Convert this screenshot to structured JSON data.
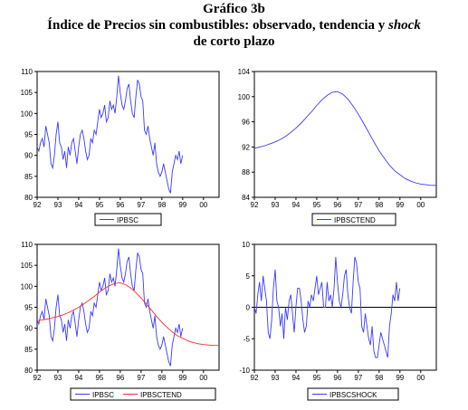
{
  "title_line1": "Gráfico 3b",
  "title_line2_prefix": "Índice de Precios sin combustibles: observado, tendencia y ",
  "title_line2_italic": "shock",
  "title_line3": "de corto plazo",
  "colors": {
    "observed": "#3a3aff",
    "trend": "#3a3aff",
    "trend_overlay": "#ff2a2a",
    "shock": "#3a3aff",
    "frame": "#000000"
  },
  "chart_data": [
    {
      "type": "line",
      "xlabel": "",
      "ylabel": "",
      "xticks": [
        "92",
        "93",
        "94",
        "95",
        "96",
        "97",
        "98",
        "99",
        "00"
      ],
      "xlim": [
        1992.0,
        2000.75
      ],
      "ylim": [
        80,
        110
      ],
      "yticks": [
        80,
        85,
        90,
        95,
        100,
        105,
        110
      ],
      "zero_line": false,
      "legend_position": "bottom",
      "series": [
        {
          "name": "IPBSC",
          "color": "#3a3aff",
          "x_start": 1992.0,
          "step": 0.0833,
          "values": [
            92,
            91,
            93,
            94,
            92,
            97,
            95,
            93,
            88,
            87,
            90,
            95,
            98,
            93,
            92,
            89,
            91,
            87,
            92,
            90,
            93,
            94,
            91,
            88,
            92,
            95,
            96,
            94,
            91,
            89,
            90,
            94,
            93,
            96,
            95,
            98,
            101,
            99,
            100,
            102,
            98,
            99,
            103,
            101,
            102,
            100,
            104,
            109,
            105,
            102,
            101,
            103,
            106,
            107,
            103,
            100,
            99,
            104,
            108,
            107,
            104,
            103,
            96,
            95,
            97,
            94,
            92,
            90,
            93,
            88,
            86,
            85,
            86,
            88,
            86,
            84,
            82,
            81,
            86,
            88,
            90,
            89,
            91,
            88,
            90
          ]
        }
      ]
    },
    {
      "type": "line",
      "xlabel": "",
      "ylabel": "",
      "xticks": [
        "92",
        "93",
        "94",
        "95",
        "96",
        "97",
        "98",
        "99",
        "00"
      ],
      "xlim": [
        1992.0,
        2000.75
      ],
      "ylim": [
        84,
        104
      ],
      "yticks": [
        84,
        88,
        92,
        96,
        100,
        104
      ],
      "zero_line": false,
      "legend_position": "bottom",
      "series": [
        {
          "name": "IPBSCTEND",
          "color": "#3a3aff",
          "x_start": 1992.0,
          "step": 0.25,
          "values": [
            91.8,
            92.0,
            92.2,
            92.5,
            92.8,
            93.2,
            93.7,
            94.3,
            95.0,
            95.8,
            96.7,
            97.6,
            98.6,
            99.5,
            100.2,
            100.7,
            100.8,
            100.4,
            99.6,
            98.5,
            97.2,
            95.8,
            94.3,
            92.8,
            91.4,
            90.2,
            89.1,
            88.2,
            87.6,
            87.0,
            86.6,
            86.3,
            86.1,
            86.0,
            85.9,
            85.9
          ]
        }
      ]
    },
    {
      "type": "line",
      "xlabel": "",
      "ylabel": "",
      "xticks": [
        "92",
        "93",
        "94",
        "95",
        "96",
        "97",
        "98",
        "99",
        "00"
      ],
      "xlim": [
        1992.0,
        2000.75
      ],
      "ylim": [
        80,
        110
      ],
      "yticks": [
        80,
        85,
        90,
        95,
        100,
        105,
        110
      ],
      "zero_line": false,
      "legend_position": "bottom",
      "series": [
        {
          "name": "IPBSC",
          "color": "#3a3aff",
          "x_start": 1992.0,
          "step": 0.0833,
          "values": [
            92,
            91,
            93,
            94,
            92,
            97,
            95,
            93,
            88,
            87,
            90,
            95,
            98,
            93,
            92,
            89,
            91,
            87,
            92,
            90,
            93,
            94,
            91,
            88,
            92,
            95,
            96,
            94,
            91,
            89,
            90,
            94,
            93,
            96,
            95,
            98,
            101,
            99,
            100,
            102,
            98,
            99,
            103,
            101,
            102,
            100,
            104,
            109,
            105,
            102,
            101,
            103,
            106,
            107,
            103,
            100,
            99,
            104,
            108,
            107,
            104,
            103,
            96,
            95,
            97,
            94,
            92,
            90,
            93,
            88,
            86,
            85,
            86,
            88,
            86,
            84,
            82,
            81,
            86,
            88,
            90,
            89,
            91,
            88,
            90
          ]
        },
        {
          "name": "IPBSCTEND",
          "color": "#ff2a2a",
          "x_start": 1992.0,
          "step": 0.25,
          "values": [
            91.8,
            92.0,
            92.2,
            92.5,
            92.8,
            93.2,
            93.7,
            94.3,
            95.0,
            95.8,
            96.7,
            97.6,
            98.6,
            99.5,
            100.2,
            100.7,
            100.8,
            100.4,
            99.6,
            98.5,
            97.2,
            95.8,
            94.3,
            92.8,
            91.4,
            90.2,
            89.1,
            88.2,
            87.6,
            87.0,
            86.6,
            86.3,
            86.1,
            86.0,
            85.9,
            85.9
          ]
        }
      ]
    },
    {
      "type": "line",
      "xlabel": "",
      "ylabel": "",
      "xticks": [
        "92",
        "93",
        "94",
        "95",
        "96",
        "97",
        "98",
        "99",
        "00"
      ],
      "xlim": [
        1992.0,
        2000.75
      ],
      "ylim": [
        -10,
        10
      ],
      "yticks": [
        -10,
        -5,
        0,
        5,
        10
      ],
      "zero_line": true,
      "legend_position": "bottom",
      "series": [
        {
          "name": "IPBSCSHOCK",
          "color": "#3a3aff",
          "x_start": 1992.0,
          "step": 0.0833,
          "values": [
            0,
            -1,
            2,
            4,
            1,
            5,
            3,
            1,
            -4,
            -5,
            -2,
            3,
            6,
            1,
            0,
            -3,
            -1,
            -5,
            0,
            -2,
            1,
            2,
            -1,
            -4,
            0,
            3,
            3,
            1,
            -2,
            -4,
            -3,
            1,
            0,
            2,
            1,
            3,
            5,
            2,
            3,
            4,
            0,
            0,
            4,
            1,
            2,
            0,
            3,
            8,
            4,
            1,
            0,
            2,
            5,
            6,
            2,
            0,
            -1,
            4,
            8,
            7,
            4,
            3,
            -3,
            -4,
            -1,
            -3,
            -5,
            -6,
            -3,
            -7,
            -8,
            -8,
            -6,
            -4,
            -5,
            -6,
            -7,
            -8,
            -3,
            -1,
            2,
            1,
            4,
            1,
            3
          ]
        }
      ]
    }
  ]
}
